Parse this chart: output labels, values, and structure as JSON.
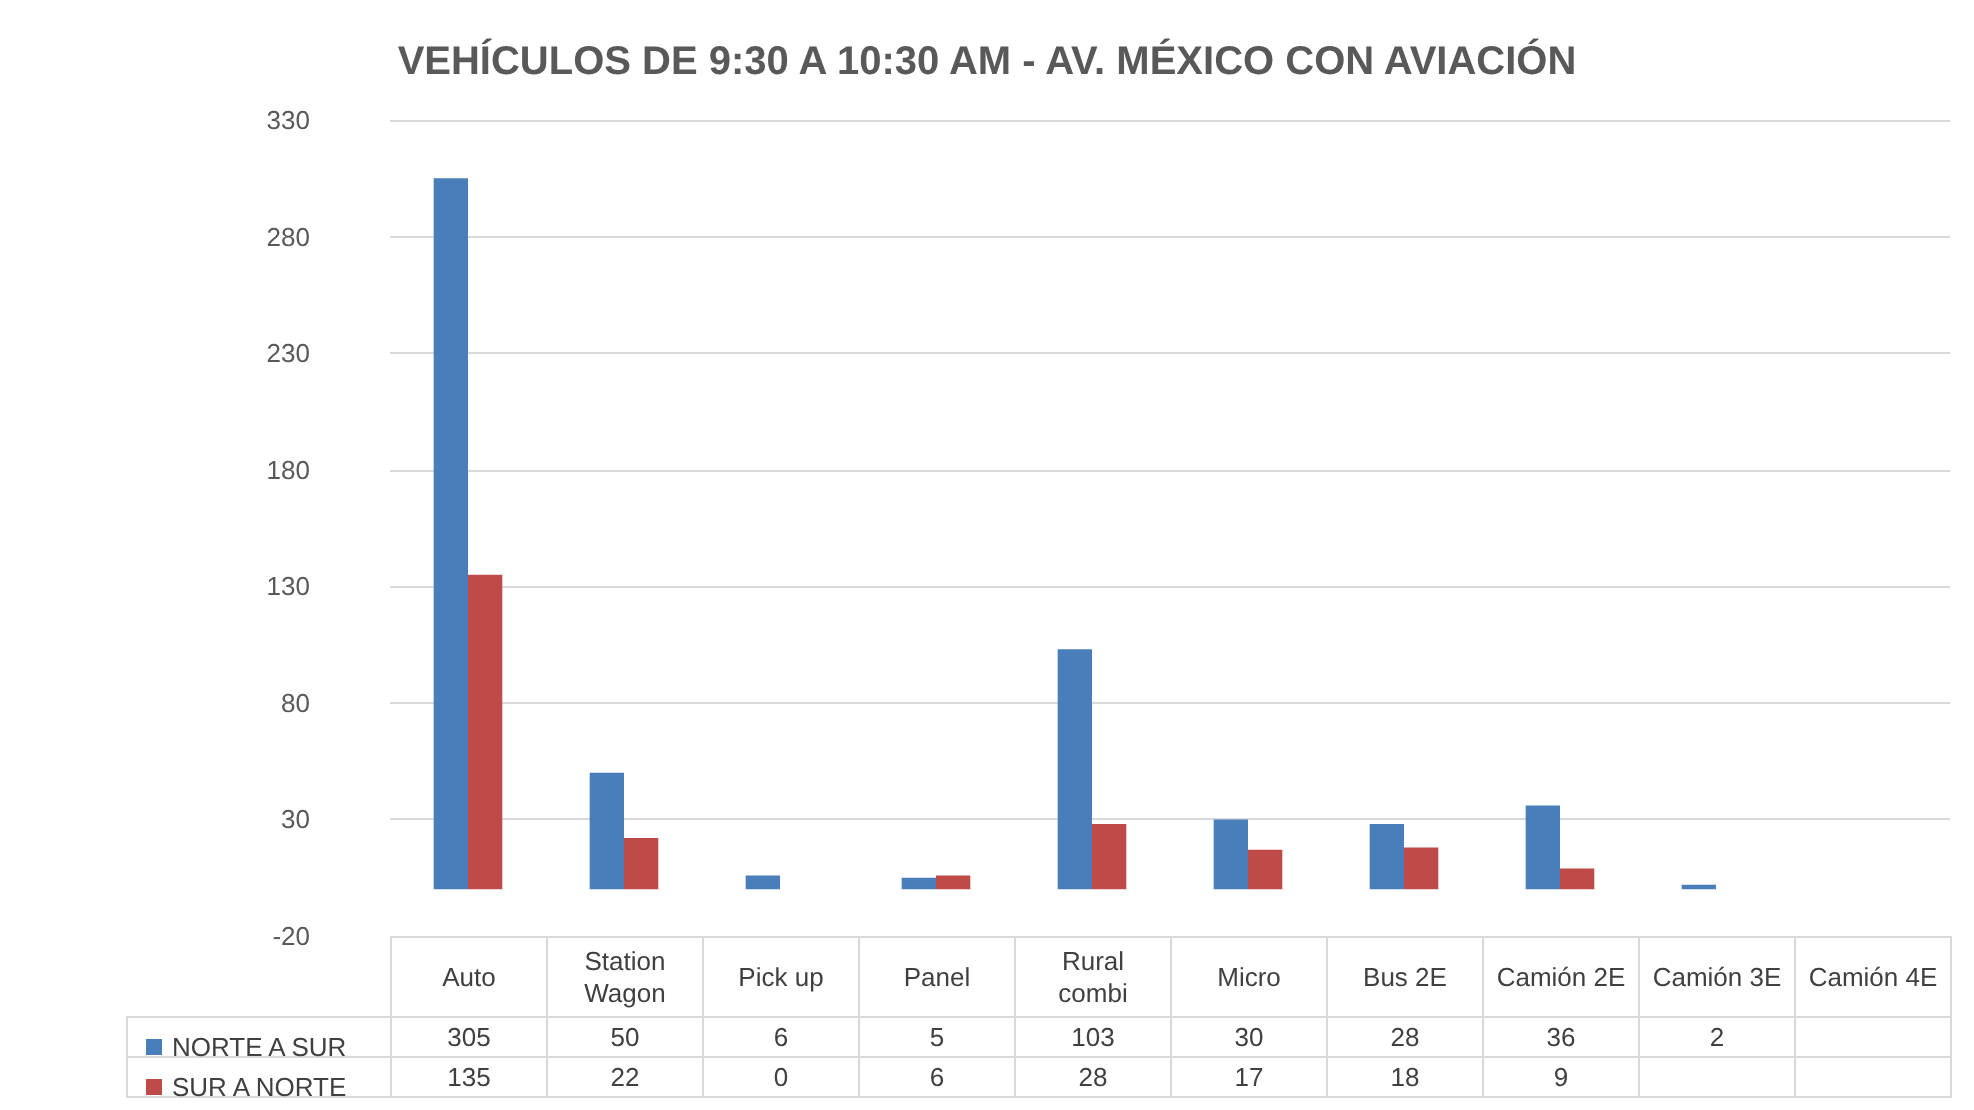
{
  "chart_data": {
    "type": "bar",
    "title": "VEHÍCULOS DE 9:30 A 10:30 AM - AV. MÉXICO CON AVIACIÓN",
    "categories": [
      "Auto",
      "Station Wagon",
      "Pick up",
      "Panel",
      "Rural combi",
      "Micro",
      "Bus 2E",
      "Camión 2E",
      "Camión 3E",
      "Camión 4E"
    ],
    "series": [
      {
        "name": "NORTE A SUR",
        "color": "#4a7ebb",
        "values": [
          305,
          50,
          6,
          5,
          103,
          30,
          28,
          36,
          2,
          null
        ]
      },
      {
        "name": "SUR A NORTE",
        "color": "#be4b48",
        "values": [
          135,
          22,
          0,
          6,
          28,
          17,
          18,
          9,
          null,
          null
        ]
      }
    ],
    "ylim": [
      -20,
      330
    ],
    "yticks": [
      -20,
      30,
      80,
      130,
      180,
      230,
      280,
      330
    ],
    "grid": "y",
    "legend": "bottom",
    "data_labels": true
  }
}
